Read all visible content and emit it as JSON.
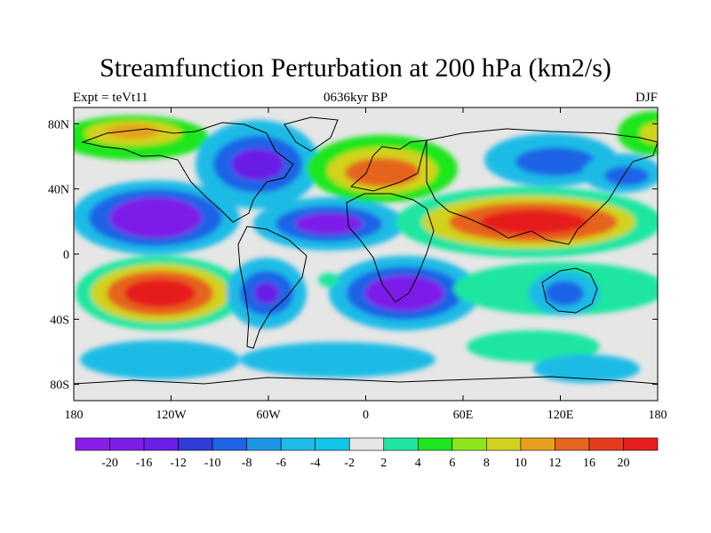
{
  "title": "Streamfunction Perturbation at 200 hPa (km2/s)",
  "subtitle_left": "Expt = teVt11",
  "subtitle_center": "0636kyr BP",
  "subtitle_right": "DJF",
  "map": {
    "lon_range": [
      -180,
      180
    ],
    "lat_range": [
      -90,
      90
    ],
    "x_ticks": [
      {
        "lon": -180,
        "label": "180"
      },
      {
        "lon": -120,
        "label": "120W"
      },
      {
        "lon": -60,
        "label": "60W"
      },
      {
        "lon": 0,
        "label": "0"
      },
      {
        "lon": 60,
        "label": "60E"
      },
      {
        "lon": 120,
        "label": "120E"
      },
      {
        "lon": 180,
        "label": "180"
      }
    ],
    "y_ticks": [
      {
        "lat": 80,
        "label": "80N"
      },
      {
        "lat": 40,
        "label": "40N"
      },
      {
        "lat": 0,
        "label": "0"
      },
      {
        "lat": -40,
        "label": "40S"
      },
      {
        "lat": -80,
        "label": "80S"
      }
    ],
    "background_color": "#e6e6e6"
  },
  "colorbar": {
    "labels": [
      "-20",
      "-16",
      "-12",
      "-10",
      "-8",
      "-6",
      "-4",
      "-2",
      "2",
      "4",
      "6",
      "8",
      "10",
      "12",
      "16",
      "20"
    ],
    "colors": [
      "#8a1ee8",
      "#7d1ee8",
      "#6a1ee6",
      "#2f3cd6",
      "#1e64e6",
      "#1e96e6",
      "#1ebbe6",
      "#11c6e6",
      "#e6e6e6",
      "#1ee6a0",
      "#1ee61e",
      "#8ce61e",
      "#d2d21e",
      "#e6a01e",
      "#e6641e",
      "#e63c1e",
      "#e61e1e"
    ]
  }
}
